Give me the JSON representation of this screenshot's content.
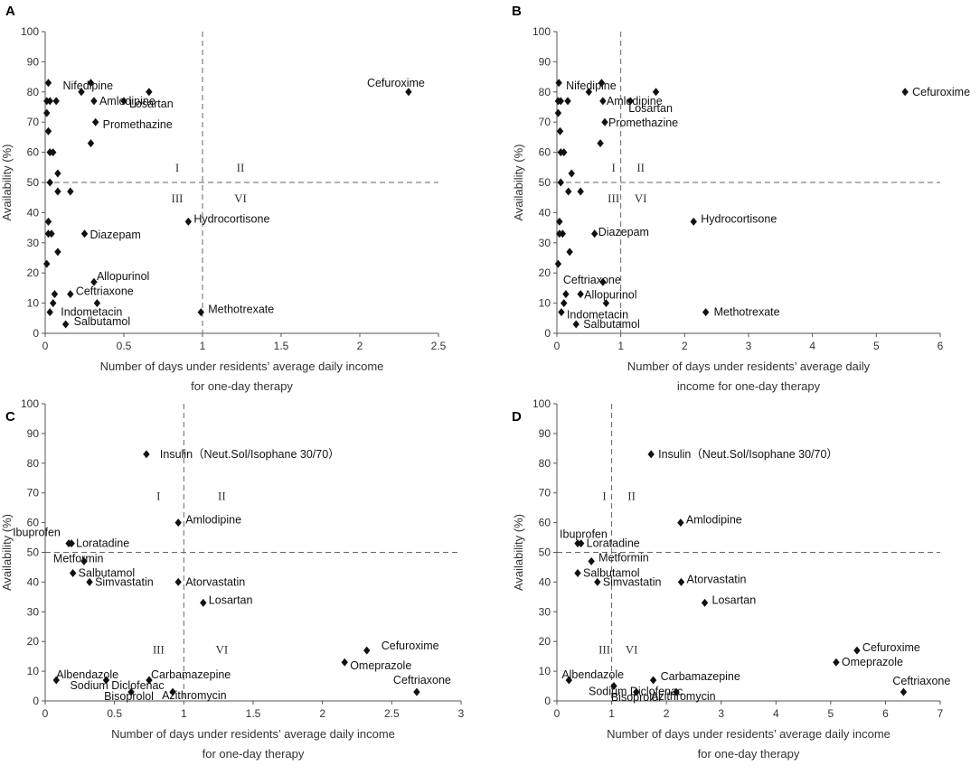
{
  "chart_data": [
    {
      "type": "scatter",
      "panel": "A",
      "xlabel": [
        "Number of days under residents’ average daily income",
        "for one-day therapy"
      ],
      "ylabel": "Availability (%)",
      "xlim": [
        0,
        2.5
      ],
      "xticks": [
        0,
        0.5,
        1,
        1.5,
        2,
        2.5
      ],
      "xtick_labels": [
        "0",
        "0.5",
        "1",
        "1.5",
        "2",
        "2.5"
      ],
      "ylim": [
        0,
        100
      ],
      "yticks": [
        0,
        10,
        20,
        30,
        40,
        50,
        60,
        70,
        80,
        90,
        100
      ],
      "ref_x": 1,
      "ref_y": 50,
      "quadrant_labels": {
        "q1": "I",
        "q2": "II",
        "q3": "III",
        "q4": "VI"
      },
      "points": [
        {
          "x": 2.31,
          "y": 80,
          "label": "Cefuroxime"
        },
        {
          "x": 0.02,
          "y": 83,
          "label": "Nifedipine"
        },
        {
          "x": 0.29,
          "y": 83
        },
        {
          "x": 0.23,
          "y": 80
        },
        {
          "x": 0.66,
          "y": 80
        },
        {
          "x": 0.31,
          "y": 77,
          "label": "Amlodipine"
        },
        {
          "x": 0.5,
          "y": 77,
          "label": "Losartan"
        },
        {
          "x": 0.01,
          "y": 77
        },
        {
          "x": 0.03,
          "y": 77
        },
        {
          "x": 0.07,
          "y": 77
        },
        {
          "x": 0.01,
          "y": 73
        },
        {
          "x": 0.32,
          "y": 70,
          "label": "Promethazine"
        },
        {
          "x": 0.02,
          "y": 67
        },
        {
          "x": 0.29,
          "y": 63
        },
        {
          "x": 0.03,
          "y": 60
        },
        {
          "x": 0.05,
          "y": 60
        },
        {
          "x": 0.08,
          "y": 53
        },
        {
          "x": 0.03,
          "y": 50
        },
        {
          "x": 0.08,
          "y": 47
        },
        {
          "x": 0.16,
          "y": 47
        },
        {
          "x": 0.91,
          "y": 37,
          "label": "Hydrocortisone"
        },
        {
          "x": 0.02,
          "y": 37
        },
        {
          "x": 0.02,
          "y": 33
        },
        {
          "x": 0.04,
          "y": 33
        },
        {
          "x": 0.25,
          "y": 33,
          "label": "Diazepam"
        },
        {
          "x": 0.08,
          "y": 27
        },
        {
          "x": 0.01,
          "y": 23
        },
        {
          "x": 0.31,
          "y": 17,
          "label": "Allopurinol"
        },
        {
          "x": 0.06,
          "y": 13
        },
        {
          "x": 0.16,
          "y": 13,
          "label": "Ceftriaxone"
        },
        {
          "x": 0.05,
          "y": 10
        },
        {
          "x": 0.33,
          "y": 10
        },
        {
          "x": 0.03,
          "y": 7,
          "label": "Indometacin"
        },
        {
          "x": 0.99,
          "y": 7,
          "label": "Methotrexate"
        },
        {
          "x": 0.13,
          "y": 3,
          "label": "Salbutamol"
        }
      ]
    },
    {
      "type": "scatter",
      "panel": "B",
      "xlabel": [
        "Number of days under residents’ average daily",
        "income for one-day therapy"
      ],
      "ylabel": "Availability (%)",
      "xlim": [
        0,
        6
      ],
      "xticks": [
        0,
        1,
        2,
        3,
        4,
        5,
        6
      ],
      "xtick_labels": [
        "0",
        "1",
        "2",
        "3",
        "4",
        "5",
        "6"
      ],
      "ylim": [
        0,
        100
      ],
      "yticks": [
        0,
        10,
        20,
        30,
        40,
        50,
        60,
        70,
        80,
        90,
        100
      ],
      "ref_x": 1,
      "ref_y": 50,
      "quadrant_labels": {
        "q1": "I",
        "q2": "II",
        "q3": "III",
        "q4": "VI"
      },
      "points": [
        {
          "x": 5.45,
          "y": 80,
          "label": "Cefuroxime"
        },
        {
          "x": 0.03,
          "y": 83,
          "label": "Nifedipine"
        },
        {
          "x": 0.7,
          "y": 83
        },
        {
          "x": 0.5,
          "y": 80
        },
        {
          "x": 1.55,
          "y": 80
        },
        {
          "x": 0.72,
          "y": 77,
          "label": "Amlodipine"
        },
        {
          "x": 1.15,
          "y": 77,
          "label": "Losartan"
        },
        {
          "x": 0.02,
          "y": 77
        },
        {
          "x": 0.06,
          "y": 77
        },
        {
          "x": 0.17,
          "y": 77
        },
        {
          "x": 0.02,
          "y": 73
        },
        {
          "x": 0.75,
          "y": 70,
          "label": "Promethazine"
        },
        {
          "x": 0.05,
          "y": 67
        },
        {
          "x": 0.68,
          "y": 63
        },
        {
          "x": 0.06,
          "y": 60
        },
        {
          "x": 0.11,
          "y": 60
        },
        {
          "x": 0.23,
          "y": 53
        },
        {
          "x": 0.06,
          "y": 50
        },
        {
          "x": 0.18,
          "y": 47
        },
        {
          "x": 0.37,
          "y": 47
        },
        {
          "x": 2.14,
          "y": 37,
          "label": "Hydrocortisone"
        },
        {
          "x": 0.04,
          "y": 37
        },
        {
          "x": 0.04,
          "y": 33
        },
        {
          "x": 0.09,
          "y": 33
        },
        {
          "x": 0.59,
          "y": 33,
          "label": "Diazepam"
        },
        {
          "x": 0.2,
          "y": 27
        },
        {
          "x": 0.02,
          "y": 23
        },
        {
          "x": 0.72,
          "y": 17,
          "label": "Ceftriaxone"
        },
        {
          "x": 0.14,
          "y": 13
        },
        {
          "x": 0.37,
          "y": 13,
          "label": "Allopurinol"
        },
        {
          "x": 0.11,
          "y": 10
        },
        {
          "x": 0.77,
          "y": 10
        },
        {
          "x": 0.07,
          "y": 7,
          "label": "Indometacin"
        },
        {
          "x": 2.33,
          "y": 7,
          "label": "Methotrexate"
        },
        {
          "x": 0.3,
          "y": 3,
          "label": "Salbutamol"
        }
      ]
    },
    {
      "type": "scatter",
      "panel": "C",
      "xlabel": [
        "Number of days under residents’ average daily income",
        "for one-day therapy"
      ],
      "ylabel": "Availability (%)",
      "xlim": [
        0,
        3
      ],
      "xticks": [
        0,
        0.5,
        1,
        1.5,
        2,
        2.5,
        3
      ],
      "xtick_labels": [
        "0",
        "0.5",
        "1",
        "1.5",
        "2",
        "2.5",
        "3"
      ],
      "ylim": [
        0,
        100
      ],
      "yticks": [
        0,
        10,
        20,
        30,
        40,
        50,
        60,
        70,
        80,
        90,
        100
      ],
      "ref_x": 1,
      "ref_y": 50,
      "quadrant_labels": {
        "q1": "I",
        "q2": "II",
        "q3": "III",
        "q4": "VI"
      },
      "points": [
        {
          "x": 0.73,
          "y": 83,
          "label": "Insulin（Neut.Sol/Isophane 30/70）"
        },
        {
          "x": 0.96,
          "y": 60,
          "label": "Amlodipine"
        },
        {
          "x": 0.17,
          "y": 53,
          "label": "Ibuprofen"
        },
        {
          "x": 0.19,
          "y": 53,
          "label": "Loratadine"
        },
        {
          "x": 0.28,
          "y": 47,
          "label": "Metformin"
        },
        {
          "x": 0.2,
          "y": 43,
          "label": "Salbutamol"
        },
        {
          "x": 0.32,
          "y": 40,
          "label": "Simvastatin"
        },
        {
          "x": 0.96,
          "y": 40,
          "label": "Atorvastatin"
        },
        {
          "x": 1.14,
          "y": 33,
          "label": "Losartan"
        },
        {
          "x": 2.32,
          "y": 17,
          "label": "Cefuroxime"
        },
        {
          "x": 2.16,
          "y": 13,
          "label": "Omeprazole"
        },
        {
          "x": 0.08,
          "y": 7,
          "label": "Albendazole"
        },
        {
          "x": 0.75,
          "y": 7,
          "label": "Carbamazepine"
        },
        {
          "x": 0.44,
          "y": 7,
          "label": "Sodium Diclofenac"
        },
        {
          "x": 0.62,
          "y": 3,
          "label": "Bisoprolol"
        },
        {
          "x": 0.92,
          "y": 3,
          "label": "Azithromycin"
        },
        {
          "x": 2.68,
          "y": 3,
          "label": "Ceftriaxone"
        }
      ]
    },
    {
      "type": "scatter",
      "panel": "D",
      "xlabel": [
        "Number of days under residents’ average daily income",
        "for one-day therapy"
      ],
      "ylabel": "Availability (%)",
      "xlim": [
        0,
        7
      ],
      "xticks": [
        0,
        1,
        2,
        3,
        4,
        5,
        6,
        7
      ],
      "xtick_labels": [
        "0",
        "1",
        "2",
        "3",
        "4",
        "5",
        "6",
        "7"
      ],
      "ylim": [
        0,
        100
      ],
      "yticks": [
        0,
        10,
        20,
        30,
        40,
        50,
        60,
        70,
        80,
        90,
        100
      ],
      "ref_x": 1,
      "ref_y": 50,
      "quadrant_labels": {
        "q1": "I",
        "q2": "II",
        "q3": "III",
        "q4": "VI"
      },
      "points": [
        {
          "x": 1.72,
          "y": 83,
          "label": "Insulin（Neut.Sol/Isophane 30/70）"
        },
        {
          "x": 2.26,
          "y": 60,
          "label": "Amlodipine"
        },
        {
          "x": 0.38,
          "y": 53,
          "label": "Ibuprofen"
        },
        {
          "x": 0.44,
          "y": 53,
          "label": "Loratadine"
        },
        {
          "x": 0.63,
          "y": 47,
          "label": "Metformin"
        },
        {
          "x": 0.38,
          "y": 43,
          "label": "Salbutamol"
        },
        {
          "x": 0.74,
          "y": 40,
          "label": "Simvastatin"
        },
        {
          "x": 2.27,
          "y": 40,
          "label": "Atorvastatin"
        },
        {
          "x": 2.7,
          "y": 33,
          "label": "Losartan"
        },
        {
          "x": 5.48,
          "y": 17,
          "label": "Cefuroxime"
        },
        {
          "x": 5.1,
          "y": 13,
          "label": "Omeprazole"
        },
        {
          "x": 0.22,
          "y": 7,
          "label": "Albendazole"
        },
        {
          "x": 1.76,
          "y": 7,
          "label": "Carbamazepine"
        },
        {
          "x": 1.04,
          "y": 5,
          "label": "Sodium Diclofenac"
        },
        {
          "x": 1.45,
          "y": 3,
          "label": "Bisoprolol"
        },
        {
          "x": 2.18,
          "y": 3,
          "label": "Azithromycin"
        },
        {
          "x": 6.33,
          "y": 3,
          "label": "Ceftriaxone"
        }
      ]
    }
  ]
}
